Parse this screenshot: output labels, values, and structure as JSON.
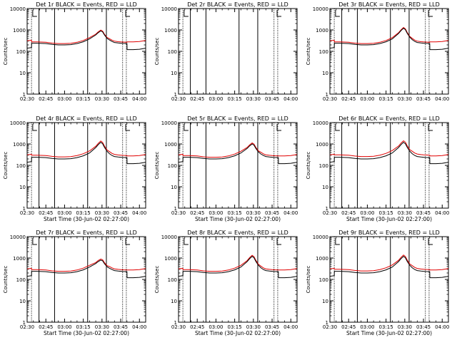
{
  "chart_data": {
    "type": "line",
    "panels": [
      {
        "title": "Det 1r BLACK = Events, RED = LLD",
        "show_xlabel": false,
        "empty": false,
        "lld_offset": 1.15,
        "peak": 900
      },
      {
        "title": "Det 2r BLACK = Events, RED = LLD",
        "show_xlabel": false,
        "empty": true
      },
      {
        "title": "Det 3r BLACK = Events, RED = LLD",
        "show_xlabel": false,
        "empty": false,
        "lld_offset": 1.15,
        "peak": 1200
      },
      {
        "title": "Det 4r BLACK = Events, RED = LLD",
        "show_xlabel": true,
        "empty": false,
        "lld_offset": 1.25,
        "peak": 1200
      },
      {
        "title": "Det 5r BLACK = Events, RED = LLD",
        "show_xlabel": true,
        "empty": false,
        "lld_offset": 1.2,
        "peak": 1000
      },
      {
        "title": "Det 6r BLACK = Events, RED = LLD",
        "show_xlabel": true,
        "empty": false,
        "lld_offset": 1.3,
        "peak": 1200
      },
      {
        "title": "Det 7r BLACK = Events, RED = LLD",
        "show_xlabel": true,
        "empty": false,
        "lld_offset": 1.2,
        "peak": 800
      },
      {
        "title": "Det 8r BLACK = Events, RED = LLD",
        "show_xlabel": true,
        "empty": false,
        "lld_offset": 1.2,
        "peak": 1200
      },
      {
        "title": "Det 9r BLACK = Events, RED = LLD",
        "show_xlabel": true,
        "empty": false,
        "lld_offset": 1.25,
        "peak": 1200
      }
    ],
    "ylabel": "Counts/sec",
    "xlabel": "Start Time (30-Jun-02 02:27:00)",
    "x_tick_labels": [
      "02:30",
      "02:45",
      "03:00",
      "03:15",
      "03:30",
      "03:45",
      "04:00"
    ],
    "x_ticks_min": [
      0,
      15,
      30,
      45,
      60,
      75,
      90
    ],
    "xlim_min": [
      0,
      95
    ],
    "y_tick_labels": [
      "1",
      "10",
      "100",
      "1000",
      "10000"
    ],
    "ylim": [
      1,
      10000
    ],
    "yscale": "log",
    "events_series_black": {
      "t": [
        0,
        3.5,
        3.6,
        8,
        15,
        20,
        25,
        30,
        35,
        40,
        45,
        50,
        55,
        57,
        59,
        60.5,
        62,
        64,
        66,
        68,
        70,
        73,
        75,
        77,
        80,
        80.1,
        85,
        90,
        95
      ],
      "v": [
        140,
        150,
        240,
        240,
        230,
        210,
        200,
        200,
        205,
        230,
        280,
        380,
        600,
        780,
        950,
        850,
        600,
        420,
        340,
        290,
        260,
        245,
        240,
        235,
        230,
        120,
        120,
        125,
        140
      ]
    },
    "solid_vlines_min": [
      9.5,
      22,
      48.5,
      63.5
    ],
    "dotted_vlines_min": [
      3.5,
      76.5,
      79.5
    ],
    "flag_marks_min": [
      4.5,
      79
    ]
  }
}
